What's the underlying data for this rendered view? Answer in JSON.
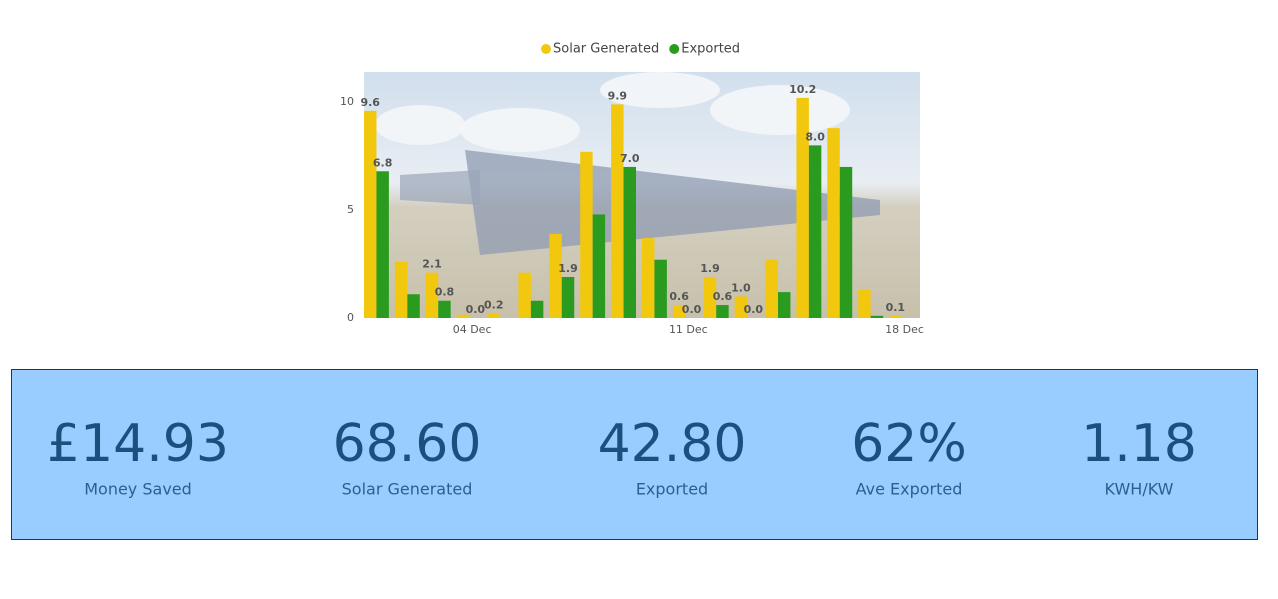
{
  "chart_data": {
    "type": "bar",
    "categories": [
      null,
      null,
      null,
      "04 Dec",
      null,
      null,
      null,
      null,
      null,
      null,
      "11 Dec",
      null,
      null,
      null,
      null,
      null,
      null,
      "18 Dec"
    ],
    "series": [
      {
        "name": "Solar Generated",
        "color": "#f2c80f",
        "values": [
          9.6,
          2.6,
          2.1,
          0.15,
          0.2,
          2.1,
          3.9,
          7.7,
          9.9,
          3.7,
          0.6,
          1.9,
          1.0,
          2.7,
          10.2,
          8.8,
          1.3,
          0.1
        ],
        "value_labels": [
          "9.6",
          null,
          "2.1",
          null,
          "0.2",
          null,
          null,
          null,
          "9.9",
          null,
          "0.6",
          "1.9",
          "1.0",
          null,
          "10.2",
          null,
          null,
          "0.1"
        ]
      },
      {
        "name": "Exported",
        "color": "#2a9b1e",
        "values": [
          6.8,
          1.1,
          0.8,
          0,
          0,
          0.8,
          1.9,
          4.8,
          7.0,
          2.7,
          0,
          0.6,
          0,
          1.2,
          8.0,
          7.0,
          0.1,
          0
        ],
        "value_labels": [
          "6.8",
          null,
          "0.8",
          "0.0",
          null,
          null,
          "1.9",
          null,
          "7.0",
          null,
          "0.0",
          "0.6",
          "0.0",
          null,
          "8.0",
          null,
          null,
          null
        ]
      }
    ],
    "ylim": [
      0,
      11.4
    ],
    "yticks": [
      0,
      5,
      10
    ],
    "grid": false,
    "legend": "top"
  },
  "cards": [
    {
      "value": "£14.93",
      "label": "Money Saved"
    },
    {
      "value": "68.60",
      "label": "Solar Generated"
    },
    {
      "value": "42.80",
      "label": "Exported"
    },
    {
      "value": "62%",
      "label": "Ave Exported"
    },
    {
      "value": "1.18",
      "label": "KWH/KW"
    }
  ]
}
